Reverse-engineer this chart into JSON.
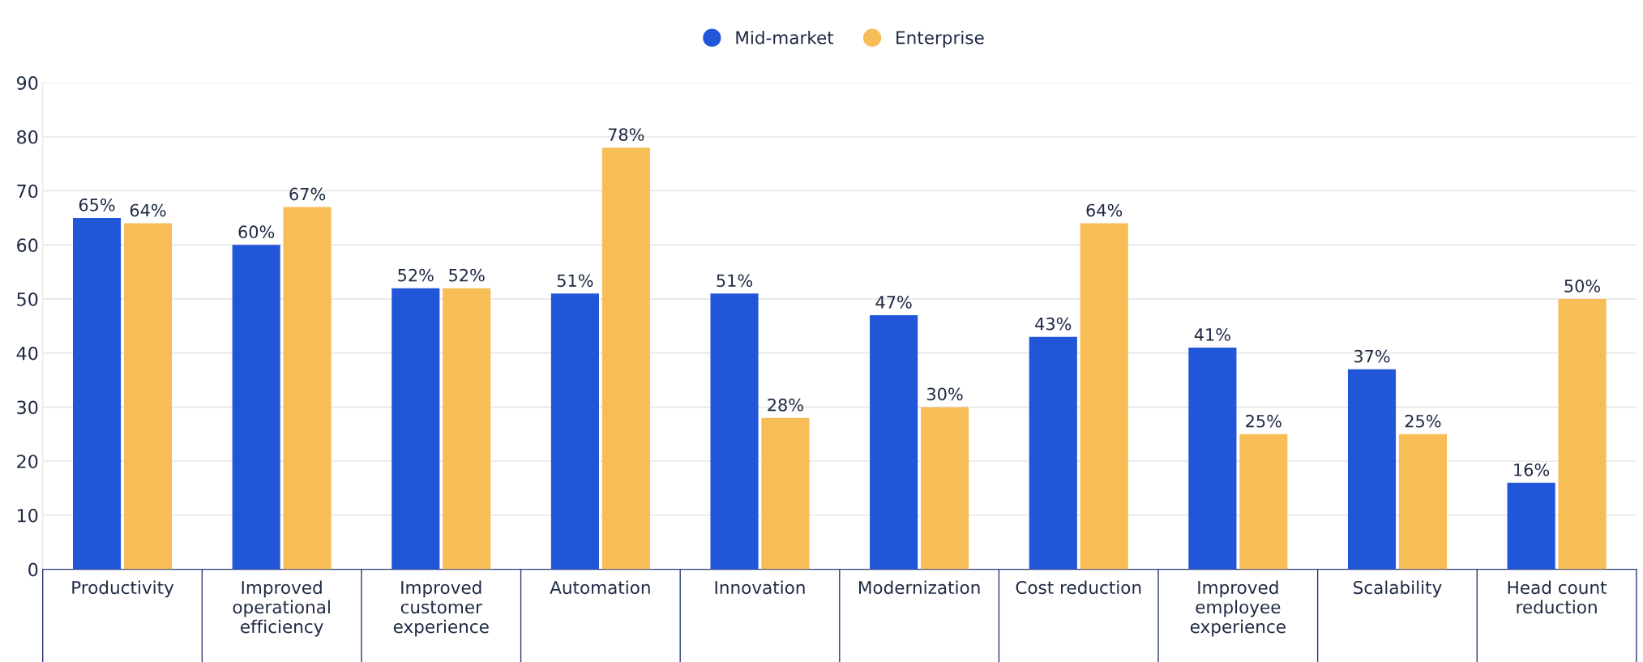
{
  "chart_data": {
    "type": "bar",
    "categories": [
      "Productivity",
      "Improved\noperational\nefficiency",
      "Improved\ncustomer\nexperience",
      "Automation",
      "Innovation",
      "Modernization",
      "Cost reduction",
      "Improved\nemployee\nexperience",
      "Scalability",
      "Head count\nreduction"
    ],
    "series": [
      {
        "name": "Mid-market",
        "color": "#2156d9",
        "values": [
          65,
          60,
          52,
          51,
          51,
          47,
          43,
          41,
          37,
          16
        ],
        "value_labels": [
          "65%",
          "60%",
          "52%",
          "51%",
          "51%",
          "47%",
          "43%",
          "41%",
          "37%",
          "16%"
        ]
      },
      {
        "name": "Enterprise",
        "color": "#f7bd56",
        "values": [
          64,
          67,
          52,
          78,
          28,
          30,
          64,
          25,
          25,
          50
        ],
        "value_labels": [
          "64%",
          "67%",
          "52%",
          "78%",
          "28%",
          "30%",
          "64%",
          "25%",
          "25%",
          "50%"
        ]
      }
    ],
    "ylim": [
      0,
      90
    ],
    "yticks": [
      0,
      10,
      20,
      30,
      40,
      50,
      60,
      70,
      80,
      90
    ],
    "grid": "y",
    "legend": "top"
  }
}
